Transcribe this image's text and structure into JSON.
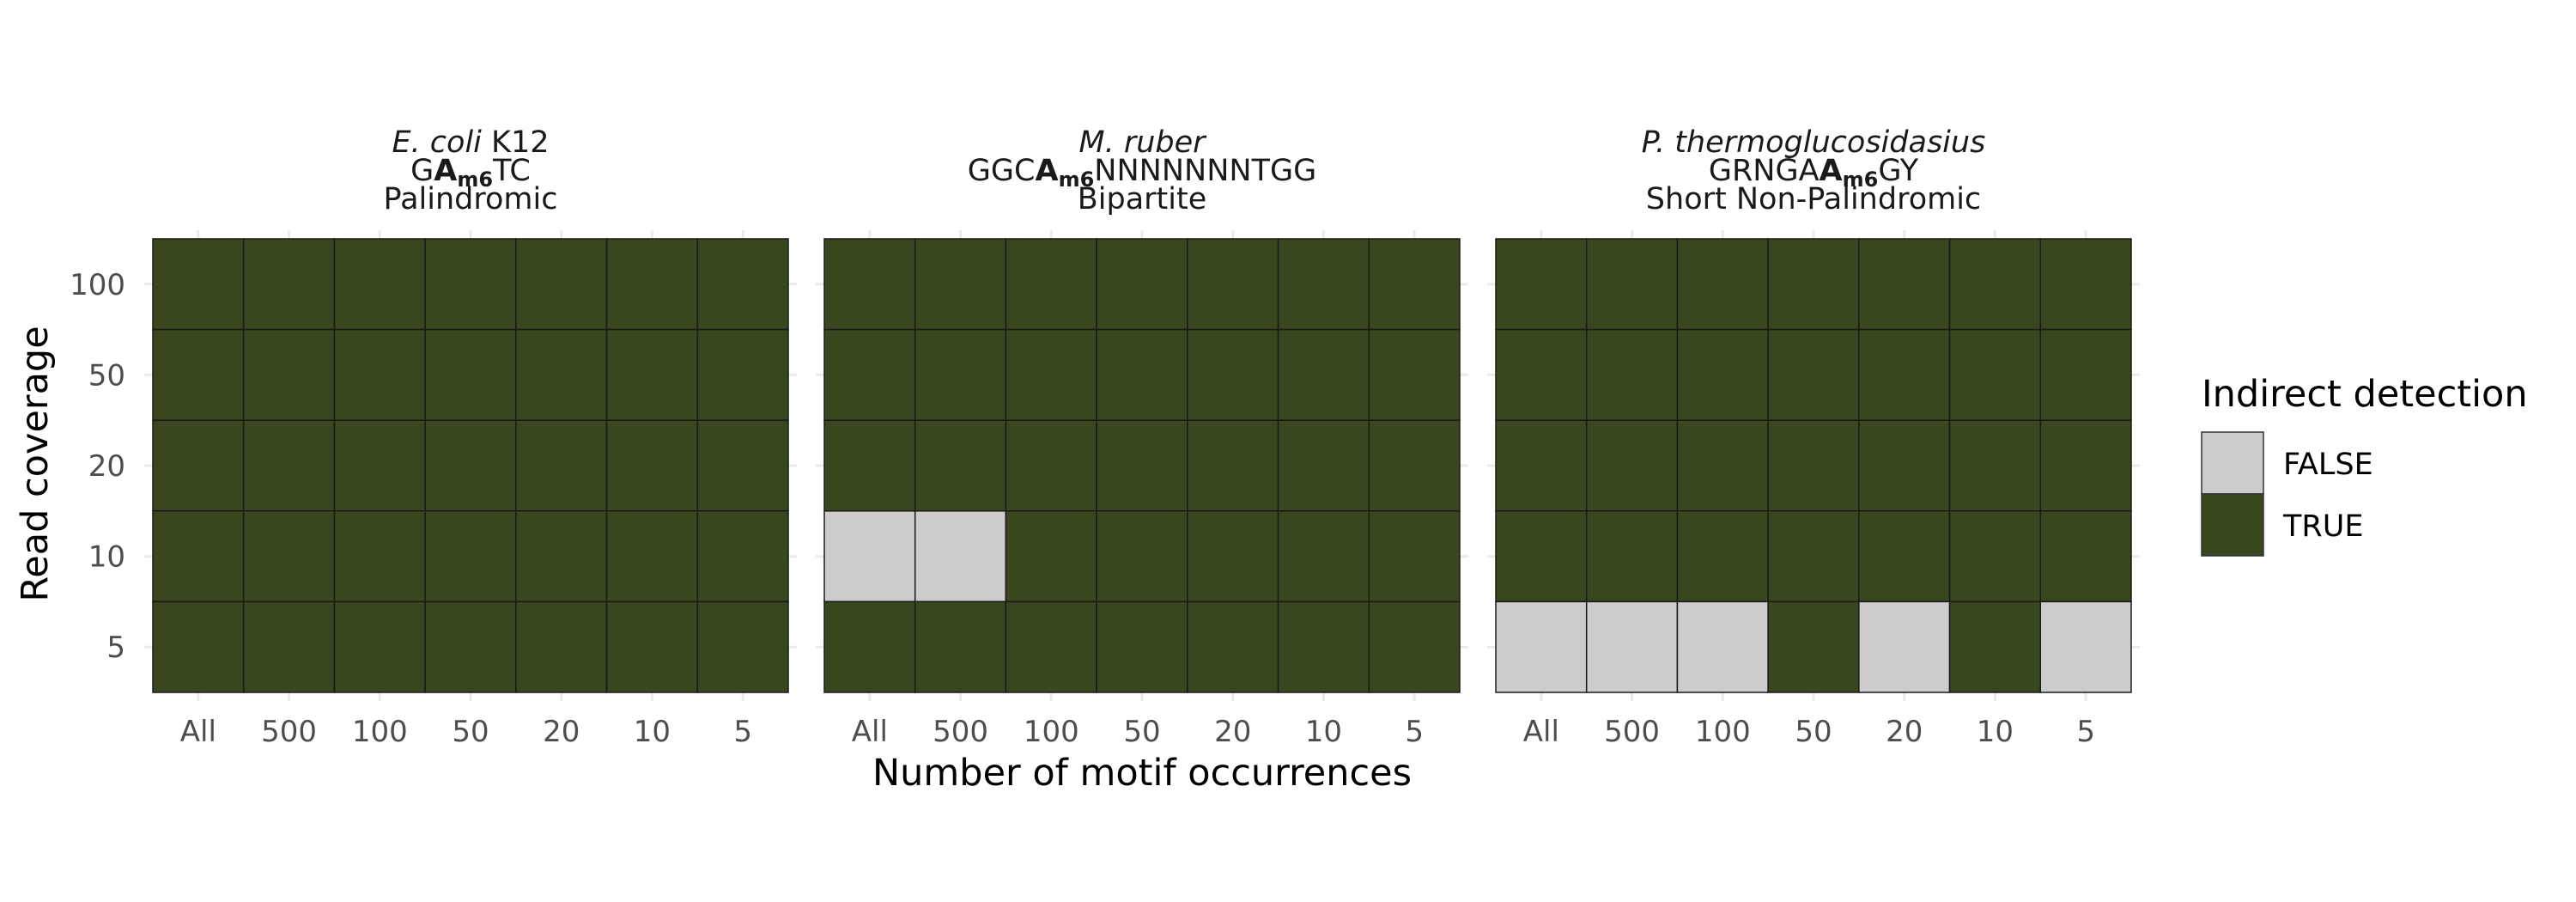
{
  "chart_data": {
    "type": "heatmap",
    "xlabel": "Number of motif occurrences",
    "ylabel": "Read coverage",
    "x_categories": [
      "All",
      "500",
      "100",
      "50",
      "20",
      "10",
      "5"
    ],
    "y_categories": [
      "100",
      "50",
      "20",
      "10",
      "5"
    ],
    "legend": {
      "title": "Indirect detection",
      "position": "right",
      "entries": [
        {
          "label": "FALSE",
          "color": "#cccccc"
        },
        {
          "label": "TRUE",
          "color": "#38471e"
        }
      ]
    },
    "panels": [
      {
        "species": "E. coli",
        "strain": " K12",
        "motif": {
          "prefix": "G",
          "mod_base": "A",
          "mod_sub": "m6",
          "suffix": "TC"
        },
        "motif_type": "Palindromic",
        "values": {
          "100": [
            true,
            true,
            true,
            true,
            true,
            true,
            true
          ],
          "50": [
            true,
            true,
            true,
            true,
            true,
            true,
            true
          ],
          "20": [
            true,
            true,
            true,
            true,
            true,
            true,
            true
          ],
          "10": [
            true,
            true,
            true,
            true,
            true,
            true,
            true
          ],
          "5": [
            true,
            true,
            true,
            true,
            true,
            true,
            true
          ]
        }
      },
      {
        "species": "M. ruber",
        "strain": "",
        "motif": {
          "prefix": "GGC",
          "mod_base": "A",
          "mod_sub": "m6",
          "suffix": "NNNNNNNTGG"
        },
        "motif_type": "Bipartite",
        "values": {
          "100": [
            true,
            true,
            true,
            true,
            true,
            true,
            true
          ],
          "50": [
            true,
            true,
            true,
            true,
            true,
            true,
            true
          ],
          "20": [
            true,
            true,
            true,
            true,
            true,
            true,
            true
          ],
          "10": [
            false,
            false,
            true,
            true,
            true,
            true,
            true
          ],
          "5": [
            true,
            true,
            true,
            true,
            true,
            true,
            true
          ]
        }
      },
      {
        "species": "P. thermoglucosidasius",
        "strain": "",
        "motif": {
          "prefix": "GRNGA",
          "mod_base": "A",
          "mod_sub": "m6",
          "suffix": "GY"
        },
        "motif_type": "Short Non-Palindromic",
        "values": {
          "100": [
            true,
            true,
            true,
            true,
            true,
            true,
            true
          ],
          "50": [
            true,
            true,
            true,
            true,
            true,
            true,
            true
          ],
          "20": [
            true,
            true,
            true,
            true,
            true,
            true,
            true
          ],
          "10": [
            true,
            true,
            true,
            true,
            true,
            true,
            true
          ],
          "5": [
            false,
            false,
            false,
            true,
            false,
            true,
            false
          ]
        }
      }
    ]
  }
}
